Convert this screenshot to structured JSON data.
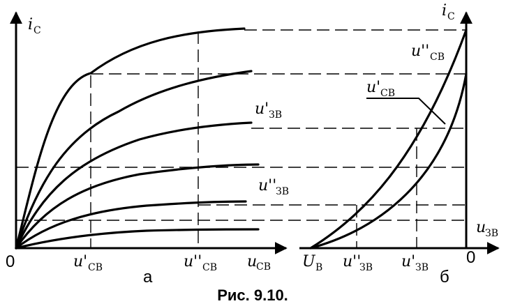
{
  "figure": {
    "caption": "Рис. 9.10.",
    "panel_a": {
      "label": "а",
      "origin": "0",
      "y_axis": {
        "main": "i",
        "sub": "С"
      },
      "x_axis": {
        "main": "u",
        "sub": "СВ"
      },
      "tick_1": {
        "main": "u'",
        "sub": "СВ"
      },
      "tick_2": {
        "main": "u''",
        "sub": "СВ"
      },
      "curve_label_1": {
        "main": "u'",
        "sub": "ЗВ"
      },
      "curve_label_2": {
        "main": "u''",
        "sub": "ЗВ"
      }
    },
    "panel_b": {
      "label": "б",
      "origin": "0",
      "y_axis": {
        "main": "i",
        "sub": "С"
      },
      "x_axis": {
        "main": "u",
        "sub": "ЗВ"
      },
      "tick_ub": {
        "main": "U",
        "sub": "В"
      },
      "tick_1": {
        "main": "u''",
        "sub": "ЗВ"
      },
      "tick_2": {
        "main": "u'",
        "sub": "ЗВ"
      },
      "curve_label_1": {
        "main": "u''",
        "sub": "СВ"
      },
      "curve_label_2": {
        "main": "u'",
        "sub": "СВ"
      }
    }
  }
}
